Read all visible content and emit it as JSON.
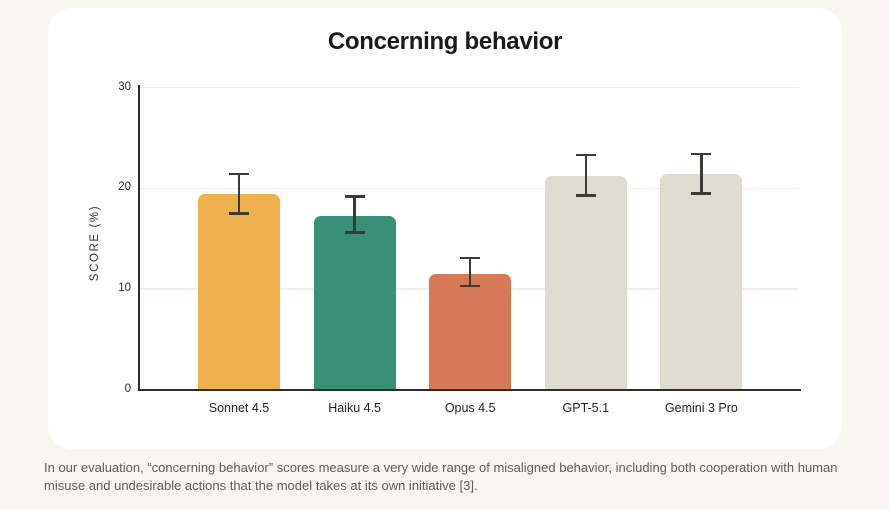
{
  "page": {
    "background_color": "#F8F6F0",
    "card_background": "#FFFFFF"
  },
  "chart_data": {
    "type": "bar",
    "title": "Concerning behavior",
    "xlabel": "",
    "ylabel": "SCORE (%)",
    "ylim": [
      0,
      30
    ],
    "yticks": [
      0,
      10,
      20,
      30
    ],
    "grid": true,
    "legend": false,
    "categories": [
      "Sonnet 4.5",
      "Haiku 4.5",
      "Opus 4.5",
      "GPT-5.1",
      "Gemini 3 Pro"
    ],
    "values": [
      19.4,
      17.3,
      11.5,
      21.2,
      21.4
    ],
    "error_low": [
      17.5,
      15.6,
      10.3,
      19.3,
      19.5
    ],
    "error_high": [
      21.4,
      19.2,
      13.1,
      23.3,
      23.4
    ],
    "bar_colors": [
      "#EFB04E",
      "#3A8F77",
      "#D57956",
      "#DEDCD0",
      "#DEDCD0"
    ],
    "colors": {
      "axis": "#2E2D2A",
      "grid": "#F1EEE5",
      "error_bar": "#3B3A36",
      "tick_label": "#2B2A26",
      "x_label": "#26251F"
    }
  },
  "caption": {
    "text": "In our evaluation, “concerning behavior” scores measure a very wide range of misaligned behavior, including both cooperation with human misuse and undesirable actions that the model takes at its own initiative [3]."
  }
}
